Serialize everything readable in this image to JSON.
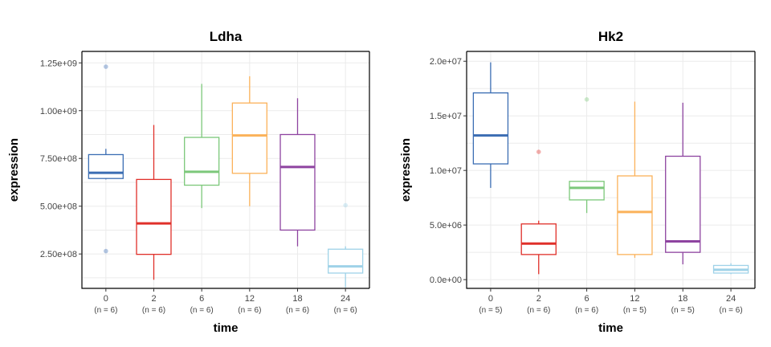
{
  "palette": [
    "#3b6db3",
    "#e0302a",
    "#7cc87a",
    "#fbb25a",
    "#8e44a0",
    "#9fd2e8"
  ],
  "chart_data": [
    {
      "type": "boxplot",
      "title": "Ldha",
      "xlabel": "time",
      "ylabel": "expression",
      "ylim": [
        70000000,
        1310000000
      ],
      "yticks": [
        250000000,
        500000000,
        750000000,
        1000000000,
        1250000000
      ],
      "ytick_labels": [
        "2.50e+08",
        "5.00e+08",
        "7.50e+08",
        "1.00e+09",
        "1.25e+09"
      ],
      "categories": [
        "0",
        "2",
        "6",
        "12",
        "18",
        "24"
      ],
      "counts": [
        "(n = 6)",
        "(n = 6)",
        "(n = 6)",
        "(n = 6)",
        "(n = 6)",
        "(n = 6)"
      ],
      "boxes": [
        {
          "whisker_low": 640000000,
          "q1": 645000000,
          "median": 675000000,
          "q3": 770000000,
          "whisker_high": 800000000,
          "outliers": [
            1230000000,
            265000000
          ]
        },
        {
          "whisker_low": 115000000,
          "q1": 248000000,
          "median": 410000000,
          "q3": 640000000,
          "whisker_high": 925000000,
          "outliers": []
        },
        {
          "whisker_low": 490000000,
          "q1": 610000000,
          "median": 680000000,
          "q3": 860000000,
          "whisker_high": 1140000000,
          "outliers": []
        },
        {
          "whisker_low": 500000000,
          "q1": 672000000,
          "median": 870000000,
          "q3": 1040000000,
          "whisker_high": 1180000000,
          "outliers": []
        },
        {
          "whisker_low": 290000000,
          "q1": 375000000,
          "median": 705000000,
          "q3": 875000000,
          "whisker_high": 1065000000,
          "outliers": []
        },
        {
          "whisker_low": 75000000,
          "q1": 150000000,
          "median": 185000000,
          "q3": 275000000,
          "whisker_high": 290000000,
          "outliers": [
            505000000
          ]
        }
      ]
    },
    {
      "type": "boxplot",
      "title": "Hk2",
      "xlabel": "time",
      "ylabel": "expression",
      "ylim": [
        -800000,
        20900000
      ],
      "yticks": [
        0,
        5000000,
        10000000,
        15000000,
        20000000
      ],
      "ytick_labels": [
        "0.0e+00",
        "5.0e+06",
        "1.0e+07",
        "1.5e+07",
        "2.0e+07"
      ],
      "categories": [
        "0",
        "2",
        "6",
        "12",
        "18",
        "24"
      ],
      "counts": [
        "(n = 5)",
        "(n = 6)",
        "(n = 6)",
        "(n = 5)",
        "(n = 5)",
        "(n = 6)"
      ],
      "boxes": [
        {
          "whisker_low": 8400000,
          "q1": 10600000,
          "median": 13200000,
          "q3": 17100000,
          "whisker_high": 19900000,
          "outliers": []
        },
        {
          "whisker_low": 500000,
          "q1": 2300000,
          "median": 3300000,
          "q3": 5100000,
          "whisker_high": 5400000,
          "outliers": [
            11700000
          ]
        },
        {
          "whisker_low": 6100000,
          "q1": 7300000,
          "median": 8400000,
          "q3": 9000000,
          "whisker_high": 9000000,
          "outliers": [
            16500000
          ]
        },
        {
          "whisker_low": 2000000,
          "q1": 2300000,
          "median": 6200000,
          "q3": 9500000,
          "whisker_high": 16300000,
          "outliers": []
        },
        {
          "whisker_low": 1400000,
          "q1": 2500000,
          "median": 3500000,
          "q3": 11300000,
          "whisker_high": 16200000,
          "outliers": []
        },
        {
          "whisker_low": 500000,
          "q1": 600000,
          "median": 900000,
          "q3": 1300000,
          "whisker_high": 1500000,
          "outliers": []
        }
      ]
    }
  ]
}
